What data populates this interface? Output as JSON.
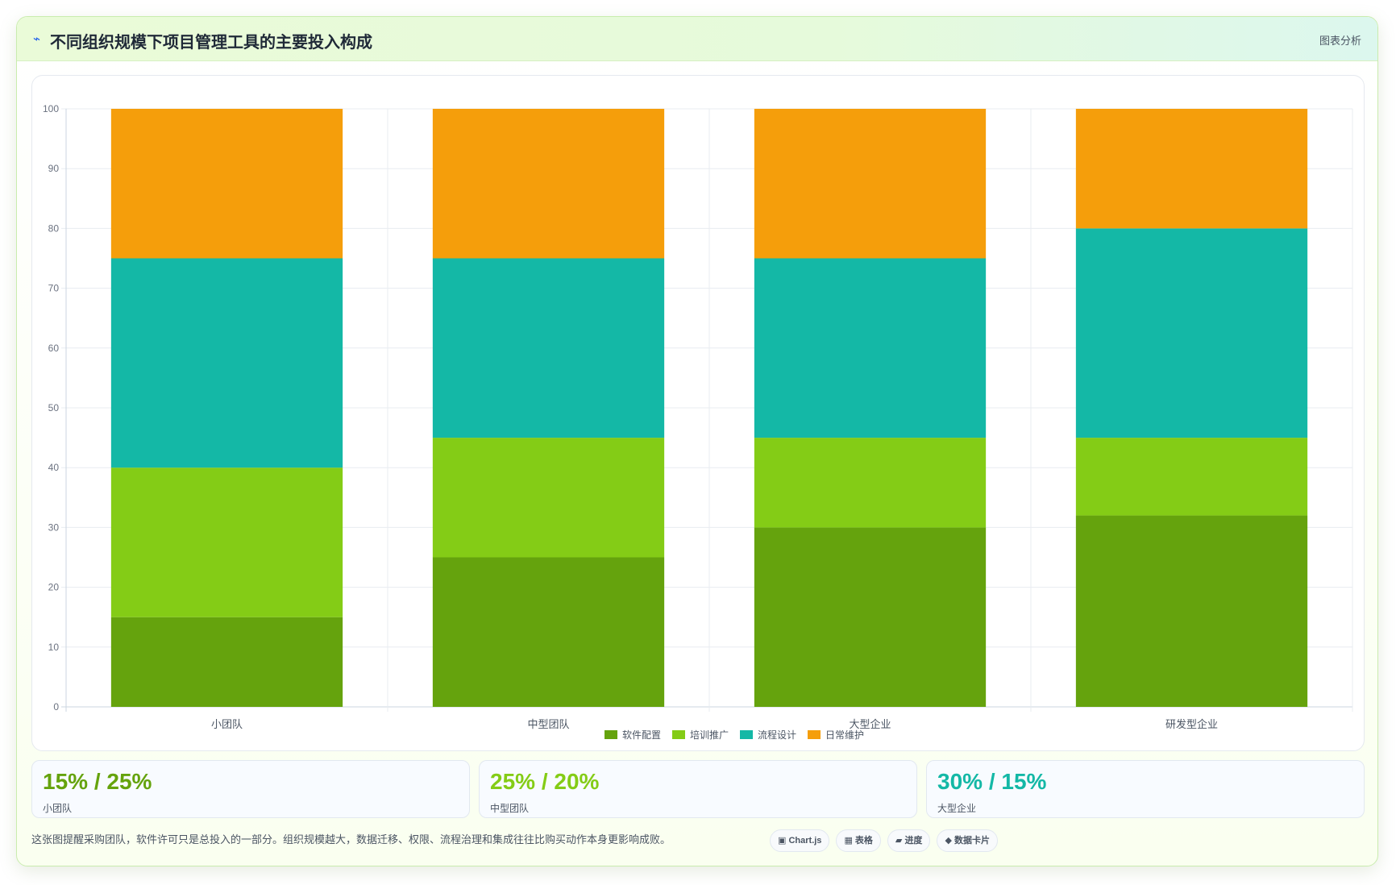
{
  "header": {
    "logo_glyph": "⌁",
    "title": "不同组织规模下项目管理工具的主要投入构成",
    "tag": "图表分析"
  },
  "chart_data": {
    "type": "bar",
    "stacked": true,
    "categories": [
      "小团队",
      "中型团队",
      "大型企业",
      "研发型企业"
    ],
    "series": [
      {
        "name": "软件配置",
        "values": [
          15,
          25,
          30,
          32
        ],
        "color": "#65a30d"
      },
      {
        "name": "培训推广",
        "values": [
          25,
          20,
          15,
          13
        ],
        "color": "#84cc16"
      },
      {
        "name": "流程设计",
        "values": [
          35,
          30,
          30,
          35
        ],
        "color": "#14b8a6"
      },
      {
        "name": "日常维护",
        "values": [
          25,
          25,
          25,
          20
        ],
        "color": "#f59e0b"
      }
    ],
    "ylim": [
      0,
      100
    ],
    "yticks": [
      0,
      10,
      20,
      30,
      40,
      50,
      60,
      70,
      80,
      90,
      100
    ],
    "grid": true,
    "legend": "bottom"
  },
  "stats": [
    {
      "value": "15% / 25%",
      "label": "小团队",
      "color": "#65a30d"
    },
    {
      "value": "25% / 20%",
      "label": "中型团队",
      "color": "#84cc16"
    },
    {
      "value": "30% / 15%",
      "label": "大型企业",
      "color": "#14b8a6"
    }
  ],
  "footnote": "这张图提醒采购团队，软件许可只是总投入的一部分。组织规模越大，数据迁移、权限、流程治理和集成往往比购买动作本身更影响成败。",
  "chips": [
    {
      "icon": "▣",
      "label": "Chart.js"
    },
    {
      "icon": "▦",
      "label": "表格"
    },
    {
      "icon": "▰",
      "label": "进度"
    },
    {
      "icon": "◆",
      "label": "数据卡片"
    }
  ]
}
